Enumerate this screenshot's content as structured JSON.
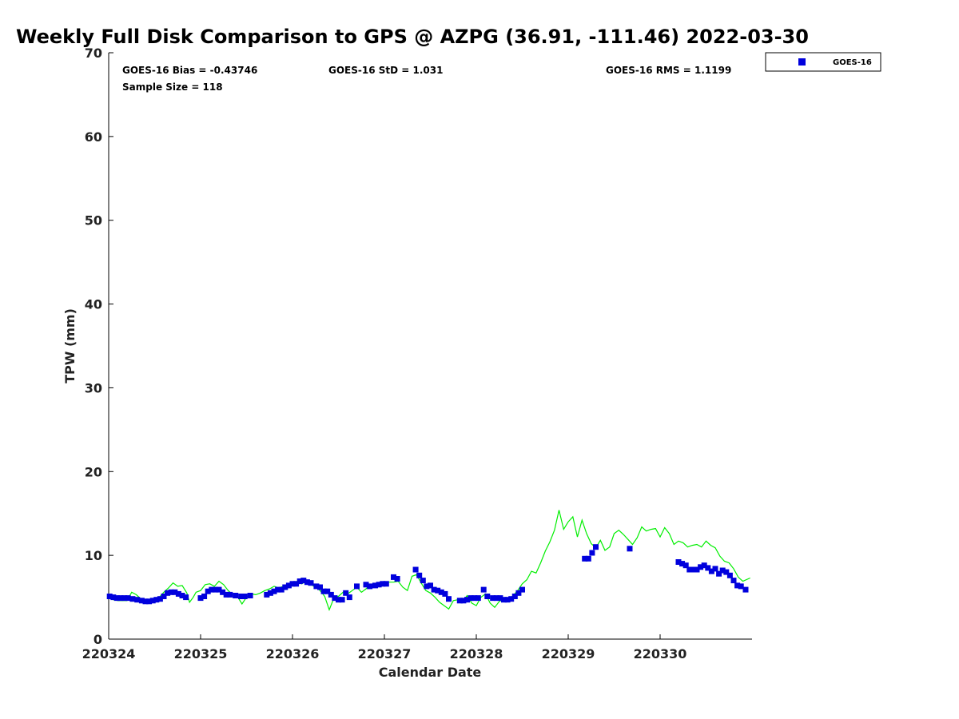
{
  "chart_data": {
    "type": "scatter",
    "title": "Weekly Full Disk Comparison to GPS @ AZPG (36.91, -111.46) 2022-03-30",
    "xlabel": "Calendar Date",
    "ylabel": "TPW (mm)",
    "xlim": [
      0,
      7
    ],
    "ylim": [
      0,
      70
    ],
    "yticks": [
      0,
      10,
      20,
      30,
      40,
      50,
      60,
      70
    ],
    "xticks": [
      0,
      1,
      2,
      3,
      4,
      5,
      6
    ],
    "xticklabels": [
      "220324",
      "220325",
      "220326",
      "220327",
      "220328",
      "220329",
      "220330"
    ],
    "grid": false,
    "legend": {
      "placement": "top-right outside",
      "entries": [
        "GOES-16"
      ]
    },
    "stats": {
      "bias": "GOES-16 Bias = -0.43746",
      "std": "GOES-16 StD = 1.031",
      "rms": "GOES-16 RMS = 1.1199",
      "sample": "Sample Size = 118"
    },
    "series": [
      {
        "name": "GOES-16",
        "marker": "square",
        "color": "#0000dd",
        "points": [
          [
            0.01,
            5.1
          ],
          [
            0.05,
            5.0
          ],
          [
            0.09,
            4.9
          ],
          [
            0.13,
            4.9
          ],
          [
            0.17,
            4.9
          ],
          [
            0.21,
            4.9
          ],
          [
            0.26,
            4.8
          ],
          [
            0.31,
            4.7
          ],
          [
            0.36,
            4.6
          ],
          [
            0.4,
            4.5
          ],
          [
            0.44,
            4.5
          ],
          [
            0.48,
            4.6
          ],
          [
            0.52,
            4.7
          ],
          [
            0.56,
            4.8
          ],
          [
            0.6,
            5.1
          ],
          [
            0.64,
            5.5
          ],
          [
            0.68,
            5.6
          ],
          [
            0.72,
            5.6
          ],
          [
            0.76,
            5.4
          ],
          [
            0.8,
            5.2
          ],
          [
            0.84,
            5.0
          ],
          [
            1.0,
            4.9
          ],
          [
            1.04,
            5.1
          ],
          [
            1.08,
            5.7
          ],
          [
            1.12,
            5.9
          ],
          [
            1.16,
            5.9
          ],
          [
            1.2,
            5.9
          ],
          [
            1.24,
            5.6
          ],
          [
            1.28,
            5.3
          ],
          [
            1.32,
            5.3
          ],
          [
            1.38,
            5.2
          ],
          [
            1.44,
            5.1
          ],
          [
            1.48,
            5.1
          ],
          [
            1.54,
            5.2
          ],
          [
            1.72,
            5.3
          ],
          [
            1.76,
            5.5
          ],
          [
            1.8,
            5.7
          ],
          [
            1.84,
            5.9
          ],
          [
            1.88,
            5.9
          ],
          [
            1.92,
            6.2
          ],
          [
            1.96,
            6.4
          ],
          [
            2.0,
            6.6
          ],
          [
            2.04,
            6.6
          ],
          [
            2.08,
            6.9
          ],
          [
            2.12,
            7.0
          ],
          [
            2.16,
            6.8
          ],
          [
            2.2,
            6.7
          ],
          [
            2.26,
            6.3
          ],
          [
            2.3,
            6.2
          ],
          [
            2.34,
            5.7
          ],
          [
            2.38,
            5.7
          ],
          [
            2.42,
            5.3
          ],
          [
            2.46,
            4.9
          ],
          [
            2.5,
            4.7
          ],
          [
            2.54,
            4.7
          ],
          [
            2.58,
            5.5
          ],
          [
            2.62,
            5.0
          ],
          [
            2.7,
            6.3
          ],
          [
            2.8,
            6.5
          ],
          [
            2.84,
            6.3
          ],
          [
            2.9,
            6.4
          ],
          [
            2.94,
            6.5
          ],
          [
            2.98,
            6.6
          ],
          [
            3.02,
            6.6
          ],
          [
            3.1,
            7.4
          ],
          [
            3.14,
            7.2
          ],
          [
            3.34,
            8.3
          ],
          [
            3.38,
            7.6
          ],
          [
            3.42,
            7.0
          ],
          [
            3.46,
            6.3
          ],
          [
            3.5,
            6.4
          ],
          [
            3.54,
            5.9
          ],
          [
            3.58,
            5.8
          ],
          [
            3.62,
            5.6
          ],
          [
            3.66,
            5.4
          ],
          [
            3.7,
            4.8
          ],
          [
            3.82,
            4.6
          ],
          [
            3.86,
            4.6
          ],
          [
            3.9,
            4.7
          ],
          [
            3.94,
            4.9
          ],
          [
            3.98,
            4.9
          ],
          [
            4.02,
            4.9
          ],
          [
            4.08,
            5.9
          ],
          [
            4.12,
            5.1
          ],
          [
            4.18,
            4.9
          ],
          [
            4.22,
            4.9
          ],
          [
            4.26,
            4.9
          ],
          [
            4.3,
            4.7
          ],
          [
            4.34,
            4.7
          ],
          [
            4.38,
            4.8
          ],
          [
            4.42,
            5.1
          ],
          [
            4.46,
            5.5
          ],
          [
            4.5,
            5.9
          ],
          [
            5.18,
            9.6
          ],
          [
            5.22,
            9.6
          ],
          [
            5.26,
            10.3
          ],
          [
            5.3,
            11.0
          ],
          [
            5.67,
            10.8
          ],
          [
            6.2,
            9.2
          ],
          [
            6.24,
            9.0
          ],
          [
            6.28,
            8.8
          ],
          [
            6.32,
            8.3
          ],
          [
            6.36,
            8.3
          ],
          [
            6.4,
            8.3
          ],
          [
            6.44,
            8.6
          ],
          [
            6.48,
            8.8
          ],
          [
            6.52,
            8.5
          ],
          [
            6.56,
            8.1
          ],
          [
            6.6,
            8.4
          ],
          [
            6.64,
            7.8
          ],
          [
            6.68,
            8.2
          ],
          [
            6.72,
            8.0
          ],
          [
            6.76,
            7.6
          ],
          [
            6.8,
            7.0
          ],
          [
            6.84,
            6.4
          ],
          [
            6.88,
            6.3
          ],
          [
            6.93,
            5.9
          ]
        ]
      },
      {
        "name": "",
        "type": "line",
        "color": "#00ee00",
        "points": [
          [
            0.0,
            4.9
          ],
          [
            0.05,
            4.7
          ],
          [
            0.1,
            4.6
          ],
          [
            0.15,
            4.6
          ],
          [
            0.2,
            4.6
          ],
          [
            0.25,
            5.6
          ],
          [
            0.3,
            5.3
          ],
          [
            0.35,
            4.8
          ],
          [
            0.4,
            4.6
          ],
          [
            0.45,
            4.5
          ],
          [
            0.5,
            4.8
          ],
          [
            0.55,
            5.0
          ],
          [
            0.6,
            5.6
          ],
          [
            0.65,
            6.1
          ],
          [
            0.7,
            6.7
          ],
          [
            0.75,
            6.3
          ],
          [
            0.8,
            6.4
          ],
          [
            0.85,
            5.5
          ],
          [
            0.88,
            4.4
          ],
          [
            0.92,
            5.0
          ],
          [
            0.95,
            5.6
          ],
          [
            1.0,
            5.8
          ],
          [
            1.05,
            6.5
          ],
          [
            1.1,
            6.6
          ],
          [
            1.15,
            6.3
          ],
          [
            1.2,
            6.9
          ],
          [
            1.25,
            6.5
          ],
          [
            1.3,
            5.8
          ],
          [
            1.35,
            5.3
          ],
          [
            1.4,
            5.1
          ],
          [
            1.45,
            4.2
          ],
          [
            1.5,
            5.0
          ],
          [
            1.55,
            5.4
          ],
          [
            1.6,
            5.3
          ],
          [
            1.65,
            5.5
          ],
          [
            1.7,
            5.8
          ],
          [
            1.75,
            6.0
          ],
          [
            1.8,
            6.3
          ],
          [
            1.85,
            6.1
          ],
          [
            1.9,
            6.3
          ],
          [
            1.95,
            6.2
          ],
          [
            2.0,
            6.5
          ],
          [
            2.05,
            6.9
          ],
          [
            2.1,
            6.6
          ],
          [
            2.15,
            6.9
          ],
          [
            2.2,
            6.5
          ],
          [
            2.25,
            6.2
          ],
          [
            2.3,
            5.8
          ],
          [
            2.35,
            5.1
          ],
          [
            2.4,
            3.5
          ],
          [
            2.45,
            4.9
          ],
          [
            2.5,
            5.1
          ],
          [
            2.55,
            5.6
          ],
          [
            2.6,
            5.4
          ],
          [
            2.65,
            5.8
          ],
          [
            2.7,
            6.2
          ],
          [
            2.75,
            5.6
          ],
          [
            2.8,
            6.0
          ],
          [
            2.85,
            6.5
          ],
          [
            2.9,
            6.6
          ],
          [
            2.95,
            6.3
          ],
          [
            3.0,
            6.5
          ],
          [
            3.05,
            6.8
          ],
          [
            3.1,
            6.8
          ],
          [
            3.15,
            6.9
          ],
          [
            3.2,
            6.2
          ],
          [
            3.25,
            5.8
          ],
          [
            3.3,
            7.5
          ],
          [
            3.35,
            7.7
          ],
          [
            3.4,
            6.7
          ],
          [
            3.45,
            5.8
          ],
          [
            3.5,
            5.5
          ],
          [
            3.55,
            5.0
          ],
          [
            3.6,
            4.4
          ],
          [
            3.65,
            4.0
          ],
          [
            3.7,
            3.6
          ],
          [
            3.75,
            4.6
          ],
          [
            3.8,
            4.7
          ],
          [
            3.85,
            4.5
          ],
          [
            3.9,
            5.2
          ],
          [
            3.95,
            4.3
          ],
          [
            4.0,
            4.0
          ],
          [
            4.05,
            5.0
          ],
          [
            4.1,
            5.4
          ],
          [
            4.15,
            4.3
          ],
          [
            4.2,
            3.8
          ],
          [
            4.25,
            4.5
          ],
          [
            4.3,
            4.8
          ],
          [
            4.35,
            4.7
          ],
          [
            4.4,
            5.2
          ],
          [
            4.45,
            5.8
          ],
          [
            4.5,
            6.6
          ],
          [
            4.55,
            7.1
          ],
          [
            4.6,
            8.1
          ],
          [
            4.65,
            7.9
          ],
          [
            4.7,
            9.1
          ],
          [
            4.75,
            10.5
          ],
          [
            4.8,
            11.6
          ],
          [
            4.85,
            13.0
          ],
          [
            4.9,
            15.4
          ],
          [
            4.95,
            13.1
          ],
          [
            5.0,
            14.0
          ],
          [
            5.05,
            14.6
          ],
          [
            5.1,
            12.2
          ],
          [
            5.15,
            14.2
          ],
          [
            5.2,
            12.6
          ],
          [
            5.25,
            11.4
          ],
          [
            5.3,
            10.9
          ],
          [
            5.35,
            11.8
          ],
          [
            5.4,
            10.6
          ],
          [
            5.45,
            11.0
          ],
          [
            5.5,
            12.6
          ],
          [
            5.55,
            13.0
          ],
          [
            5.6,
            12.5
          ],
          [
            5.65,
            11.9
          ],
          [
            5.7,
            11.3
          ],
          [
            5.75,
            12.1
          ],
          [
            5.8,
            13.4
          ],
          [
            5.85,
            12.9
          ],
          [
            5.9,
            13.1
          ],
          [
            5.95,
            13.2
          ],
          [
            6.0,
            12.2
          ],
          [
            6.05,
            13.3
          ],
          [
            6.1,
            12.6
          ],
          [
            6.15,
            11.3
          ],
          [
            6.2,
            11.7
          ],
          [
            6.25,
            11.5
          ],
          [
            6.3,
            11.0
          ],
          [
            6.35,
            11.2
          ],
          [
            6.4,
            11.3
          ],
          [
            6.45,
            11.0
          ],
          [
            6.5,
            11.7
          ],
          [
            6.55,
            11.2
          ],
          [
            6.6,
            10.9
          ],
          [
            6.65,
            9.9
          ],
          [
            6.7,
            9.3
          ],
          [
            6.75,
            9.1
          ],
          [
            6.8,
            8.4
          ],
          [
            6.85,
            7.4
          ],
          [
            6.9,
            6.9
          ],
          [
            6.98,
            7.3
          ]
        ]
      }
    ]
  }
}
